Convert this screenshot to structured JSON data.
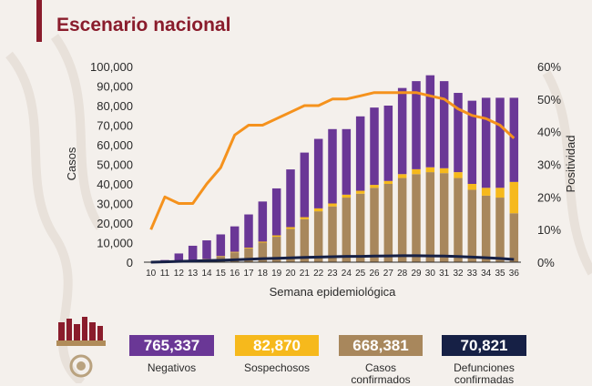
{
  "header": {
    "title": "Escenario nacional"
  },
  "colors": {
    "accent": "#8a1c2c",
    "negativos": "#6a3796",
    "sospechosos": "#f6b91c",
    "confirmados": "#a8875c",
    "defunciones": "#162045",
    "positividad": "#f5921d"
  },
  "chart_data": {
    "type": "bar",
    "stacked": true,
    "xlabel": "Semana epidemiológica",
    "ylabel": "Casos",
    "y2label": "Positividad",
    "ylim": [
      0,
      100000
    ],
    "y2lim": [
      0,
      60
    ],
    "yticks": [
      "100,000",
      "90,000",
      "80,000",
      "70,000",
      "60,000",
      "50,000",
      "40,000",
      "30,000",
      "20,000",
      "10,000",
      "0"
    ],
    "y2ticks": [
      "60%",
      "50%",
      "40%",
      "30%",
      "20%",
      "10%",
      "0%"
    ],
    "categories": [
      "10",
      "11",
      "12",
      "13",
      "14",
      "15",
      "16",
      "17",
      "18",
      "19",
      "20",
      "21",
      "22",
      "23",
      "24",
      "25",
      "26",
      "27",
      "28",
      "29",
      "30",
      "31",
      "32",
      "33",
      "34",
      "35",
      "36"
    ],
    "series": [
      {
        "key": "confirmados",
        "values": [
          50,
          100,
          400,
          800,
          1500,
          3000,
          5000,
          7000,
          10000,
          13000,
          17000,
          22000,
          26000,
          28500,
          33000,
          35000,
          38000,
          40000,
          43000,
          45000,
          46000,
          45500,
          43000,
          37000,
          34000,
          33000,
          25000
        ]
      },
      {
        "key": "sospechosos",
        "values": [
          0,
          0,
          50,
          100,
          150,
          200,
          300,
          400,
          500,
          700,
          900,
          1000,
          1500,
          1500,
          1500,
          1500,
          1500,
          1500,
          2000,
          2500,
          2500,
          2500,
          3000,
          3000,
          4000,
          5000,
          16000
        ]
      },
      {
        "key": "negativos",
        "values": [
          100,
          1000,
          4000,
          7500,
          9500,
          11000,
          13000,
          17000,
          20500,
          24000,
          29500,
          33000,
          35500,
          38000,
          33500,
          38000,
          39500,
          38500,
          44000,
          45000,
          47000,
          44500,
          40500,
          42500,
          46000,
          46000,
          43000
        ]
      },
      {
        "key": "defunciones",
        "type": "line",
        "values": [
          0,
          200,
          400,
          600,
          800,
          1000,
          1200,
          1500,
          1800,
          2000,
          2200,
          2400,
          2600,
          2800,
          3000,
          3000,
          3100,
          3200,
          3300,
          3300,
          3200,
          3100,
          2900,
          2600,
          2300,
          1900,
          1400
        ]
      },
      {
        "key": "positividad",
        "type": "line",
        "axis": "y2",
        "values": [
          10,
          20,
          18,
          18,
          24,
          29,
          39,
          42,
          42,
          44,
          46,
          48,
          48,
          50,
          50,
          51,
          52,
          52,
          52,
          52,
          51,
          50,
          47,
          45,
          44,
          42,
          38
        ]
      }
    ]
  },
  "summary": [
    {
      "value": "765,337",
      "label": "Negativos"
    },
    {
      "value": "82,870",
      "label": "Sospechosos"
    },
    {
      "value": "668,381",
      "label": "Casos\nconfirmados"
    },
    {
      "value": "70,821",
      "label": "Defunciones\nconfirmadas"
    }
  ]
}
